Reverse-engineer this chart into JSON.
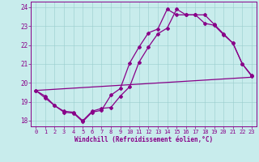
{
  "xlabel": "Windchill (Refroidissement éolien,°C)",
  "bg_color": "#c8ecec",
  "line_color": "#880088",
  "xlim": [
    -0.5,
    23.5
  ],
  "ylim": [
    17.7,
    24.3
  ],
  "xticks": [
    0,
    1,
    2,
    3,
    4,
    5,
    6,
    7,
    8,
    9,
    10,
    11,
    12,
    13,
    14,
    15,
    16,
    17,
    18,
    19,
    20,
    21,
    22,
    23
  ],
  "yticks": [
    18,
    19,
    20,
    21,
    22,
    23,
    24
  ],
  "grid_color": "#99cccc",
  "series1_x": [
    0,
    1,
    2,
    3,
    4,
    5,
    6,
    7,
    8,
    9,
    10,
    11,
    12,
    13,
    14,
    15,
    16,
    17,
    18,
    19,
    20,
    21,
    22,
    23
  ],
  "series1_y": [
    19.6,
    19.3,
    18.8,
    18.5,
    18.45,
    18.0,
    18.5,
    18.65,
    18.7,
    19.3,
    19.8,
    21.1,
    21.9,
    22.6,
    22.9,
    23.9,
    23.6,
    23.6,
    23.6,
    23.1,
    22.6,
    22.1,
    21.0,
    20.4
  ],
  "series2_x": [
    0,
    23
  ],
  "series2_y": [
    19.6,
    20.3
  ],
  "series3_x": [
    0,
    1,
    2,
    3,
    4,
    5,
    6,
    7,
    8,
    9,
    10,
    11,
    12,
    13,
    14,
    15,
    16,
    17,
    18,
    19,
    20,
    21,
    22,
    23
  ],
  "series3_y": [
    19.6,
    19.2,
    18.8,
    18.45,
    18.4,
    17.95,
    18.45,
    18.55,
    19.35,
    19.7,
    21.05,
    21.9,
    22.65,
    22.85,
    23.9,
    23.6,
    23.6,
    23.6,
    23.15,
    23.05,
    22.55,
    22.1,
    21.0,
    20.35
  ],
  "marker": "D",
  "markersize": 2.0,
  "linewidth": 0.9
}
